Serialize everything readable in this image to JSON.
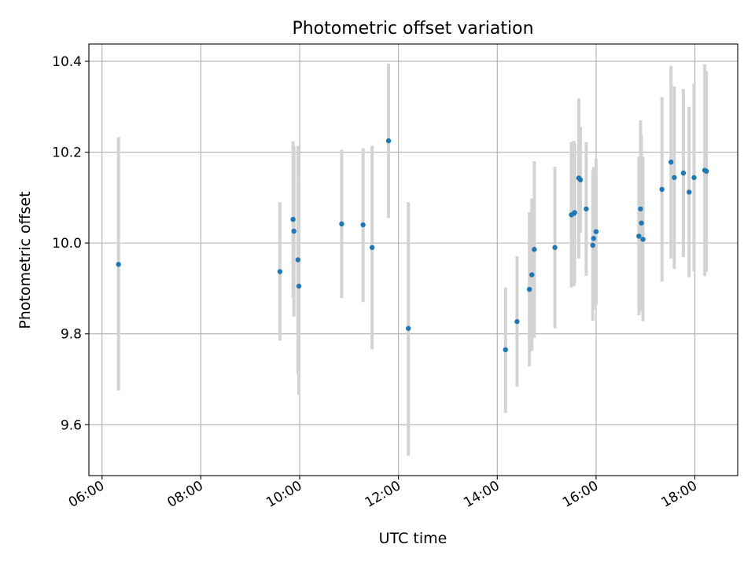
{
  "chart_data": {
    "type": "scatter",
    "title": "Photometric offset variation",
    "xlabel": "UTC time",
    "ylabel": "Photometric offset",
    "xlim": [
      "05:44",
      "18:52"
    ],
    "ylim": [
      9.488,
      10.438
    ],
    "grid": true,
    "x_ticks": [
      "06:00",
      "08:00",
      "10:00",
      "12:00",
      "14:00",
      "16:00",
      "18:00"
    ],
    "y_ticks": [
      "9.6",
      "9.8",
      "10.0",
      "10.2",
      "10.4"
    ],
    "colors": {
      "marker": "#1f77b4",
      "errorbar": "#d3d3d3",
      "grid": "#b0b0b0"
    },
    "points": [
      {
        "x": "06:20",
        "y": 9.953,
        "low": 9.675,
        "high": 10.233
      },
      {
        "x": "09:36",
        "y": 9.937,
        "low": 9.785,
        "high": 10.09
      },
      {
        "x": "09:52",
        "y": 10.052,
        "low": 9.88,
        "high": 10.224
      },
      {
        "x": "09:53",
        "y": 10.026,
        "low": 9.838,
        "high": 10.214
      },
      {
        "x": "09:58",
        "y": 9.963,
        "low": 9.712,
        "high": 10.214
      },
      {
        "x": "09:59",
        "y": 9.905,
        "low": 9.666,
        "high": 10.143
      },
      {
        "x": "10:51",
        "y": 10.042,
        "low": 9.879,
        "high": 10.205
      },
      {
        "x": "11:17",
        "y": 10.04,
        "low": 9.87,
        "high": 10.209
      },
      {
        "x": "11:28",
        "y": 9.99,
        "low": 9.766,
        "high": 10.214
      },
      {
        "x": "11:48",
        "y": 10.225,
        "low": 10.055,
        "high": 10.395
      },
      {
        "x": "12:12",
        "y": 9.812,
        "low": 9.532,
        "high": 10.09
      },
      {
        "x": "14:10",
        "y": 9.765,
        "low": 9.626,
        "high": 9.902
      },
      {
        "x": "14:24",
        "y": 9.827,
        "low": 9.684,
        "high": 9.971
      },
      {
        "x": "14:39",
        "y": 9.898,
        "low": 9.728,
        "high": 10.068
      },
      {
        "x": "14:42",
        "y": 9.93,
        "low": 9.762,
        "high": 10.098
      },
      {
        "x": "14:45",
        "y": 9.986,
        "low": 9.791,
        "high": 10.18
      },
      {
        "x": "15:10",
        "y": 9.99,
        "low": 9.812,
        "high": 10.168
      },
      {
        "x": "15:30",
        "y": 10.062,
        "low": 9.902,
        "high": 10.222
      },
      {
        "x": "15:33",
        "y": 10.065,
        "low": 9.905,
        "high": 10.225
      },
      {
        "x": "15:34",
        "y": 10.067,
        "low": 9.912,
        "high": 10.22
      },
      {
        "x": "15:39",
        "y": 10.143,
        "low": 9.966,
        "high": 10.318
      },
      {
        "x": "15:41",
        "y": 10.139,
        "low": 10.022,
        "high": 10.256
      },
      {
        "x": "15:48",
        "y": 10.075,
        "low": 9.928,
        "high": 10.222
      },
      {
        "x": "15:56",
        "y": 9.995,
        "low": 9.829,
        "high": 10.16
      },
      {
        "x": "15:57",
        "y": 10.01,
        "low": 9.854,
        "high": 10.167
      },
      {
        "x": "16:00",
        "y": 10.025,
        "low": 9.864,
        "high": 10.186
      },
      {
        "x": "16:52",
        "y": 10.015,
        "low": 9.841,
        "high": 10.19
      },
      {
        "x": "16:54",
        "y": 10.075,
        "low": 9.88,
        "high": 10.27
      },
      {
        "x": "16:55",
        "y": 10.044,
        "low": 9.849,
        "high": 10.238
      },
      {
        "x": "16:57",
        "y": 10.008,
        "low": 9.828,
        "high": 10.19
      },
      {
        "x": "17:20",
        "y": 10.118,
        "low": 9.915,
        "high": 10.321
      },
      {
        "x": "17:31",
        "y": 10.178,
        "low": 9.966,
        "high": 10.39
      },
      {
        "x": "17:35",
        "y": 10.144,
        "low": 9.943,
        "high": 10.345
      },
      {
        "x": "17:46",
        "y": 10.154,
        "low": 9.969,
        "high": 10.339
      },
      {
        "x": "17:53",
        "y": 10.112,
        "low": 9.925,
        "high": 10.3
      },
      {
        "x": "17:59",
        "y": 10.144,
        "low": 9.938,
        "high": 10.351
      },
      {
        "x": "18:12",
        "y": 10.16,
        "low": 9.927,
        "high": 10.393
      },
      {
        "x": "18:14",
        "y": 10.158,
        "low": 9.937,
        "high": 10.379
      }
    ]
  }
}
